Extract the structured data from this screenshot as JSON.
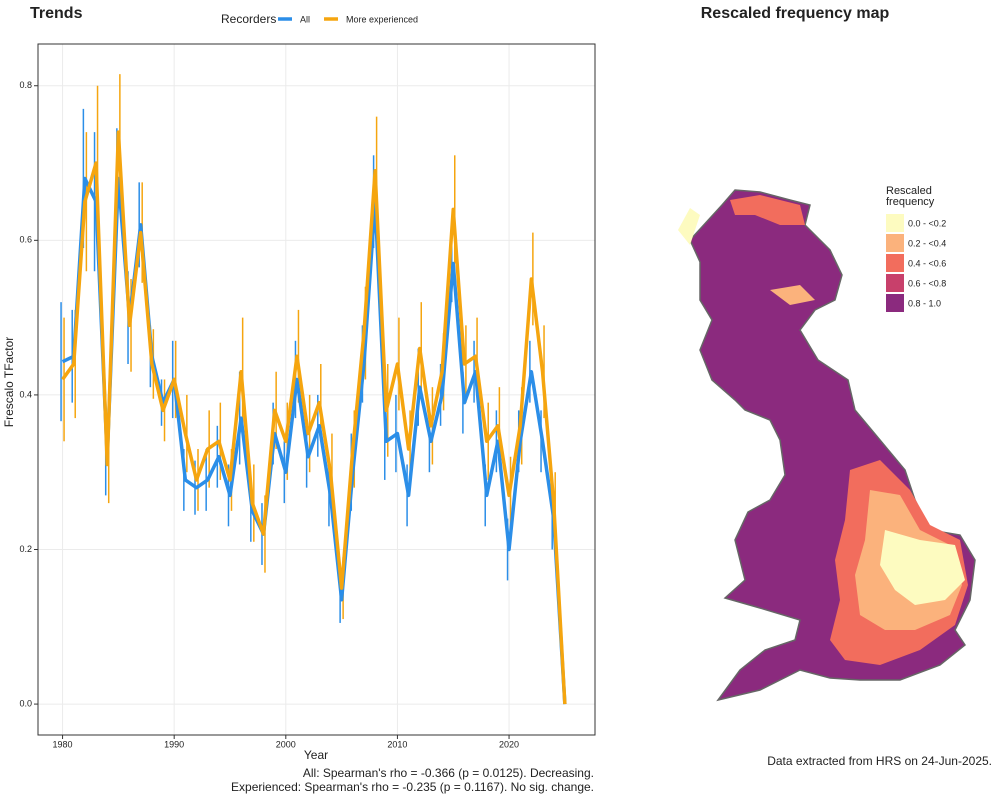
{
  "chart_data": {
    "type": "line",
    "title": "Trends",
    "legend_title": "Recorders",
    "xlabel": "Year",
    "ylabel": "Frescalo TFactor",
    "x": [
      1980,
      1981,
      1982,
      1983,
      1984,
      1985,
      1986,
      1987,
      1988,
      1989,
      1990,
      1991,
      1992,
      1993,
      1994,
      1995,
      1996,
      1997,
      1998,
      1999,
      2000,
      2001,
      2002,
      2003,
      2004,
      2005,
      2006,
      2007,
      2008,
      2009,
      2010,
      2011,
      2012,
      2013,
      2014,
      2015,
      2016,
      2017,
      2018,
      2019,
      2020,
      2021,
      2022,
      2023,
      2024,
      2025
    ],
    "series": [
      {
        "name": "All",
        "color": "#2b8ee8",
        "values": [
          0.443,
          0.45,
          0.68,
          0.65,
          0.32,
          0.68,
          0.5,
          0.62,
          0.45,
          0.39,
          0.42,
          0.29,
          0.28,
          0.29,
          0.32,
          0.27,
          0.37,
          0.25,
          0.22,
          0.35,
          0.3,
          0.42,
          0.32,
          0.36,
          0.27,
          0.135,
          0.3,
          0.44,
          0.65,
          0.34,
          0.35,
          0.27,
          0.41,
          0.34,
          0.4,
          0.57,
          0.39,
          0.43,
          0.27,
          0.34,
          0.2,
          0.34,
          0.43,
          0.34,
          0.24,
          0
        ],
        "errors": [
          0.077,
          0.06,
          0.09,
          0.09,
          0.05,
          0.065,
          0.06,
          0.055,
          0.04,
          0.03,
          0.05,
          0.04,
          0.035,
          0.04,
          0.04,
          0.04,
          0.06,
          0.04,
          0.04,
          0.04,
          0.04,
          0.05,
          0.04,
          0.04,
          0.04,
          0.03,
          0.05,
          0.05,
          0.06,
          0.05,
          0.05,
          0.04,
          0.05,
          0.04,
          0.04,
          0.05,
          0.04,
          0.04,
          0.04,
          0.04,
          0.04,
          0.04,
          0.04,
          0.04,
          0.04,
          0
        ]
      },
      {
        "name": "More experienced",
        "color": "#f5a50f",
        "values": [
          0.42,
          0.44,
          0.65,
          0.7,
          0.31,
          0.74,
          0.49,
          0.61,
          0.44,
          0.38,
          0.42,
          0.35,
          0.29,
          0.33,
          0.34,
          0.29,
          0.43,
          0.26,
          0.22,
          0.38,
          0.34,
          0.45,
          0.35,
          0.39,
          0.3,
          0.15,
          0.33,
          0.48,
          0.69,
          0.38,
          0.44,
          0.33,
          0.46,
          0.36,
          0.43,
          0.64,
          0.44,
          0.45,
          0.34,
          0.36,
          0.27,
          0.36,
          0.55,
          0.43,
          0.26,
          0
        ],
        "errors": [
          0.08,
          0.07,
          0.09,
          0.1,
          0.05,
          0.075,
          0.06,
          0.065,
          0.045,
          0.04,
          0.05,
          0.05,
          0.04,
          0.05,
          0.05,
          0.04,
          0.07,
          0.05,
          0.05,
          0.05,
          0.05,
          0.06,
          0.05,
          0.05,
          0.05,
          0.04,
          0.05,
          0.06,
          0.07,
          0.06,
          0.06,
          0.05,
          0.06,
          0.05,
          0.05,
          0.07,
          0.05,
          0.05,
          0.05,
          0.05,
          0.05,
          0.05,
          0.06,
          0.06,
          0.04,
          0
        ]
      }
    ],
    "xlim": [
      1977.8,
      2027.7
    ],
    "ylim": [
      -0.04,
      0.854
    ],
    "xticks": [
      1980,
      1990,
      2000,
      2010,
      2020
    ],
    "yticks": [
      {
        "value": 0,
        "label": "0.0"
      },
      0.2,
      0.4,
      0.6,
      0.8
    ],
    "grid": true
  },
  "footnotes": [
    "All: Spearman's rho = -0.366 (p = 0.0125). Decreasing.",
    "Experienced: Spearman's rho = -0.235 (p = 0.1167). No sig. change."
  ],
  "map": {
    "title": "Rescaled frequency map",
    "legend": {
      "title": "Rescaled frequency",
      "items": [
        {
          "label": "0.0 - <0.2",
          "color": "#fdfbc0"
        },
        {
          "label": "0.2 - <0.4",
          "color": "#fbb27c"
        },
        {
          "label": "0.4 - <0.6",
          "color": "#f26d5d"
        },
        {
          "label": "0.6 - <0.8",
          "color": "#c8406b"
        },
        {
          "label": "0.8 - 1.0",
          "color": "#8b2a7e"
        }
      ]
    },
    "source": "Data extracted from HRS on 24-Jun-2025."
  }
}
